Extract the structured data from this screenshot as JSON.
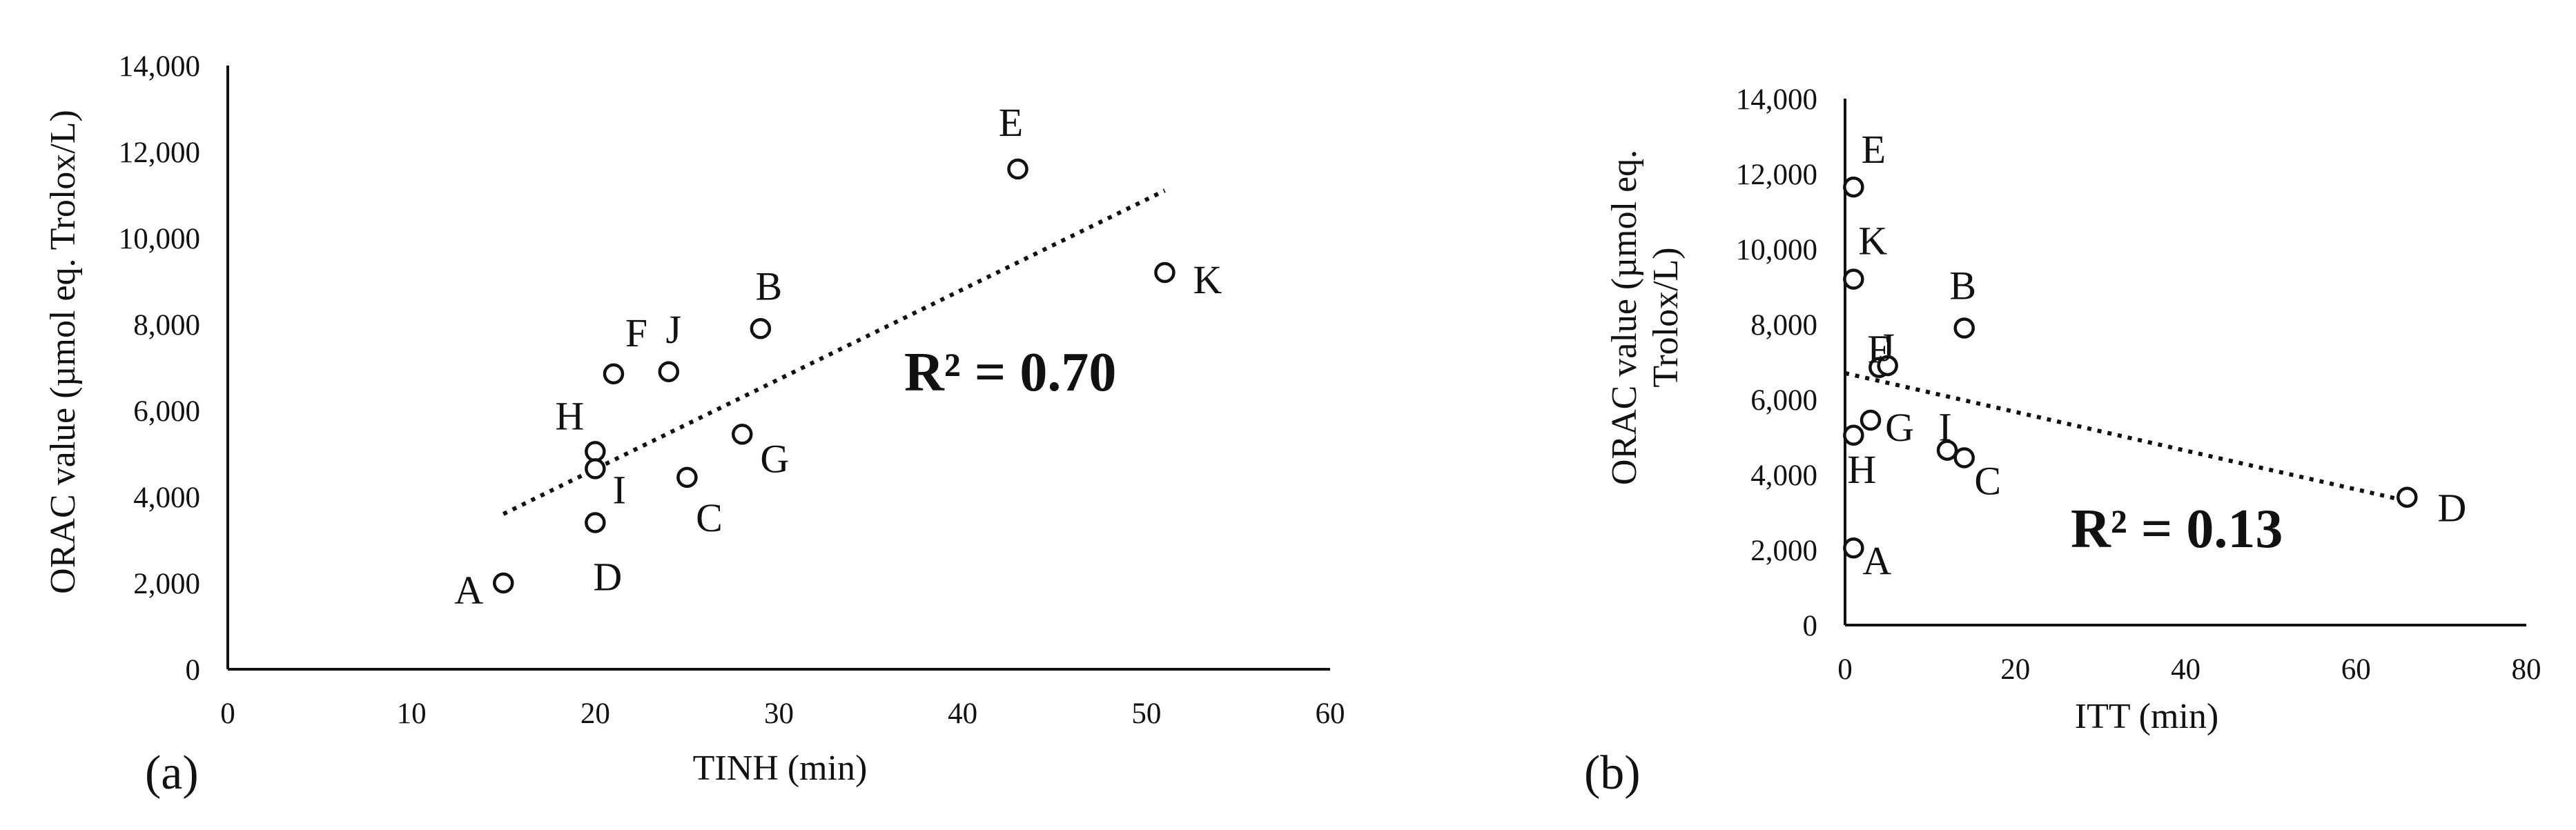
{
  "chart_data": [
    {
      "type": "scatter",
      "panel_label": "(a)",
      "xlabel": "TINH (min)",
      "ylabel": "ORAC value (µmol eq. Trolox/L)",
      "xlim": [
        0,
        60
      ],
      "ylim": [
        0,
        14000
      ],
      "xticks": [
        0,
        10,
        20,
        30,
        40,
        50,
        60
      ],
      "yticks": [
        0,
        2000,
        4000,
        6000,
        8000,
        10000,
        12000,
        14000
      ],
      "xtick_labels": [
        "0",
        "10",
        "20",
        "30",
        "40",
        "50",
        "60"
      ],
      "ytick_labels": [
        "0",
        "2,000",
        "4,000",
        "6,000",
        "8,000",
        "10,000",
        "12,000",
        "14,000"
      ],
      "points": [
        {
          "label": "A",
          "x": 15,
          "y": 2000
        },
        {
          "label": "B",
          "x": 29,
          "y": 7900
        },
        {
          "label": "C",
          "x": 25,
          "y": 4450
        },
        {
          "label": "D",
          "x": 20,
          "y": 3400
        },
        {
          "label": "E",
          "x": 43,
          "y": 11600
        },
        {
          "label": "F",
          "x": 21,
          "y": 6850
        },
        {
          "label": "G",
          "x": 28,
          "y": 5450
        },
        {
          "label": "H",
          "x": 20,
          "y": 5050
        },
        {
          "label": "I",
          "x": 20,
          "y": 4650
        },
        {
          "label": "J",
          "x": 24,
          "y": 6900
        },
        {
          "label": "K",
          "x": 51,
          "y": 9200
        }
      ],
      "trendline": {
        "x": [
          15,
          51
        ],
        "y": [
          3600,
          11100
        ]
      },
      "annotation": "R² = 0.70",
      "grid": false,
      "legend": "none"
    },
    {
      "type": "scatter",
      "panel_label": "(b)",
      "xlabel": "ITT  (min)",
      "ylabel_lines": [
        "ORAC value (µmol eq.",
        "Trolox/L)"
      ],
      "xlim": [
        0,
        80
      ],
      "ylim": [
        0,
        14000
      ],
      "xticks": [
        0,
        20,
        40,
        60,
        80
      ],
      "yticks": [
        0,
        2000,
        4000,
        6000,
        8000,
        10000,
        12000,
        14000
      ],
      "xtick_labels": [
        "0",
        "20",
        "40",
        "60",
        "80"
      ],
      "ytick_labels": [
        "0",
        "2,000",
        "4,000",
        "6,000",
        "8,000",
        "10,000",
        "12,000",
        "14,000"
      ],
      "points": [
        {
          "label": "A",
          "x": 1,
          "y": 2050
        },
        {
          "label": "B",
          "x": 14,
          "y": 7900
        },
        {
          "label": "C",
          "x": 14,
          "y": 4450
        },
        {
          "label": "D",
          "x": 66,
          "y": 3400
        },
        {
          "label": "E",
          "x": 1,
          "y": 11650
        },
        {
          "label": "F",
          "x": 4,
          "y": 6850
        },
        {
          "label": "G",
          "x": 3,
          "y": 5450
        },
        {
          "label": "H",
          "x": 1,
          "y": 5050
        },
        {
          "label": "I",
          "x": 12,
          "y": 4650
        },
        {
          "label": "J",
          "x": 5,
          "y": 6900
        },
        {
          "label": "K",
          "x": 1,
          "y": 9200
        }
      ],
      "trendline": {
        "x": [
          0,
          66
        ],
        "y": [
          6700,
          3300
        ]
      },
      "annotation": "R² = 0.13",
      "grid": false,
      "legend": "none"
    }
  ]
}
